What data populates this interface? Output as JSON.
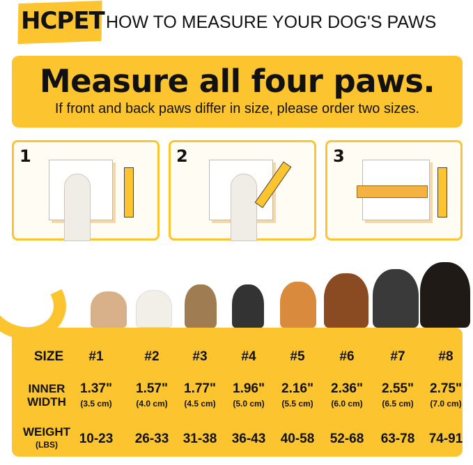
{
  "brand": "HCPET",
  "title": "HOW TO MEASURE YOUR DOG'S PAWS",
  "banner": {
    "headline": "Measure all four paws.",
    "subtext": "If front and back paws differ in size, please order two sizes."
  },
  "steps": [
    {
      "number": "1"
    },
    {
      "number": "2"
    },
    {
      "number": "3"
    }
  ],
  "colors": {
    "accent": "#fcc42f",
    "text": "#111111"
  },
  "size_chart": {
    "row_labels": {
      "size": "SIZE",
      "inner_width_1": "INNER",
      "inner_width_2": "WIDTH",
      "weight": "WEIGHT",
      "weight_unit": "(LBS)"
    },
    "sizes": [
      "#1",
      "#2",
      "#3",
      "#4",
      "#5",
      "#6",
      "#7",
      "#8"
    ],
    "inner_width_in": [
      "1.37\"",
      "1.57\"",
      "1.77\"",
      "1.96\"",
      "2.16\"",
      "2.36\"",
      "2.55\"",
      "2.75\""
    ],
    "inner_width_cm": [
      "(3.5 cm)",
      "(4.0 cm)",
      "(4.5 cm)",
      "(5.0 cm)",
      "(5.5 cm)",
      "(6.0 cm)",
      "(6.5 cm)",
      "(7.0 cm)"
    ],
    "weight_lbs": [
      "10-23",
      "26-33",
      "31-38",
      "36-43",
      "40-58",
      "52-68",
      "63-78",
      "74-91"
    ]
  }
}
